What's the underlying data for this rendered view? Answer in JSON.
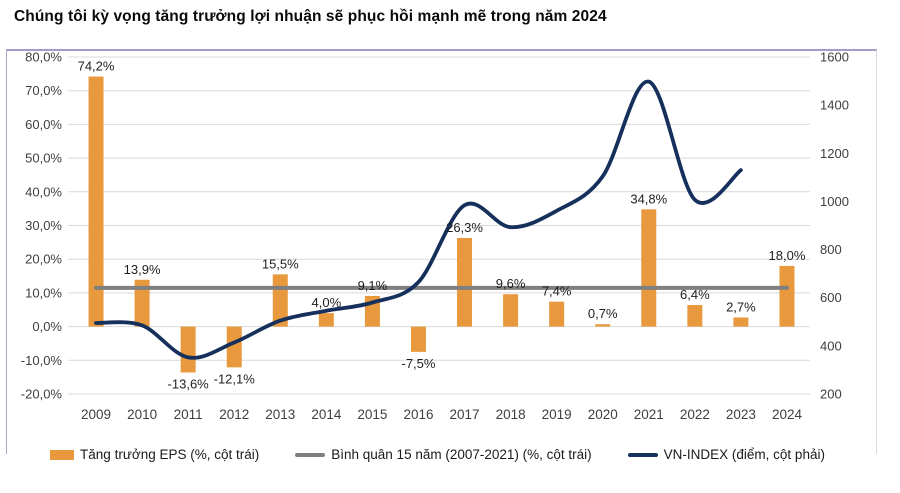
{
  "title": "Chúng tôi kỳ vọng tăng trưởng lợi nhuận sẽ phục hồi mạnh mẽ trong năm 2024",
  "colors": {
    "bar": "#E8993D",
    "vn_line": "#16305C",
    "avg_line": "#7F7F7F",
    "grid": "#D9D9D9",
    "axis_text": "#3F3F3F",
    "data_label": "#1F1F1F",
    "frame": "#9E9EC8"
  },
  "chart_data": {
    "type": "combo (bar + line, dual axis)",
    "categories": [
      "2009",
      "2010",
      "2011",
      "2012",
      "2013",
      "2014",
      "2015",
      "2016",
      "2017",
      "2018",
      "2019",
      "2020",
      "2021",
      "2022",
      "2023",
      "2024"
    ],
    "series": [
      {
        "name": "Tăng trưởng EPS (%, cột trái)",
        "type": "bar",
        "axis": "left",
        "values": [
          74.2,
          13.9,
          -13.6,
          -12.1,
          15.5,
          4.0,
          9.1,
          -7.5,
          26.3,
          9.6,
          7.4,
          0.7,
          34.8,
          6.4,
          2.7,
          18.0
        ],
        "labels": [
          "74,2%",
          "13,9%",
          "-13,6%",
          "-12,1%",
          "15,5%",
          "4,0%",
          "9,1%",
          "-7,5%",
          "26,3%",
          "9,6%",
          "7,4%",
          "0,7%",
          "34,8%",
          "6,4%",
          "2,7%",
          "18,0%"
        ]
      },
      {
        "name": "Bình quân 15 năm (2007-2021) (%, cột trái)",
        "type": "avg-line",
        "axis": "left",
        "value": 11.5
      },
      {
        "name": "VN-INDEX (điểm, cột phải)",
        "type": "smooth-line",
        "axis": "right",
        "values": [
          495,
          485,
          352,
          414,
          505,
          546,
          580,
          665,
          984,
          893,
          961,
          1104,
          1498,
          1007,
          1130
        ]
      }
    ],
    "left_axis": {
      "min": -20,
      "max": 80,
      "step": 10,
      "labels": [
        "80,0%",
        "70,0%",
        "60,0%",
        "50,0%",
        "40,0%",
        "30,0%",
        "20,0%",
        "10,0%",
        "0,0%",
        "-10,0%",
        "-20,0%"
      ]
    },
    "right_axis": {
      "min": 200,
      "max": 1600,
      "step": 200,
      "labels": [
        "1600",
        "1400",
        "1200",
        "1000",
        "800",
        "600",
        "400",
        "200"
      ]
    },
    "grid": true,
    "legend_position": "bottom"
  },
  "legend": {
    "items": [
      {
        "label": "Tăng trưởng EPS (%, cột trái)"
      },
      {
        "label": "Bình quân 15 năm (2007-2021) (%, cột trái)"
      },
      {
        "label": "VN-INDEX (điểm, cột phải)"
      }
    ]
  }
}
